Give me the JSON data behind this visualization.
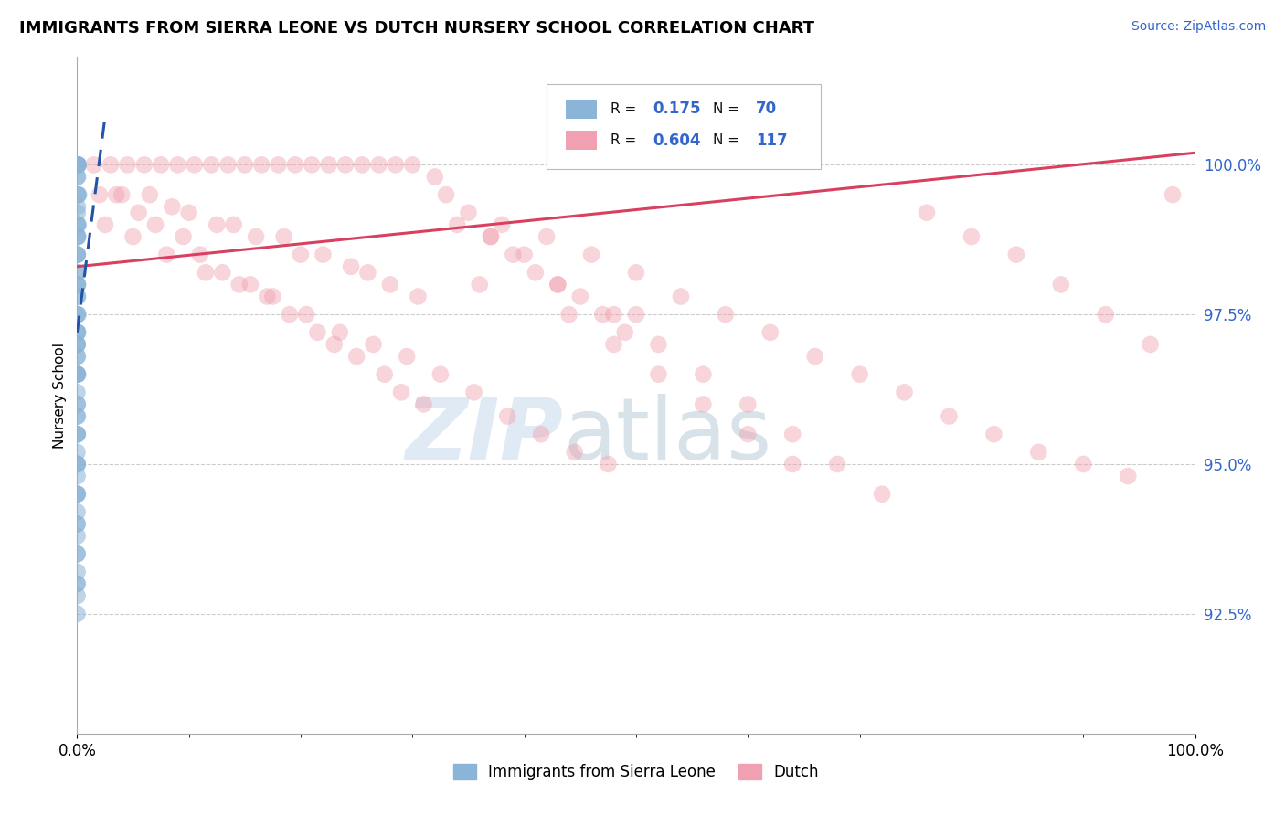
{
  "title": "IMMIGRANTS FROM SIERRA LEONE VS DUTCH NURSERY SCHOOL CORRELATION CHART",
  "source_text": "Source: ZipAtlas.com",
  "ylabel": "Nursery School",
  "x_min": 0.0,
  "x_max": 100.0,
  "y_min": 90.5,
  "y_max": 101.8,
  "y_ticks": [
    92.5,
    95.0,
    97.5,
    100.0
  ],
  "y_tick_labels": [
    "92.5%",
    "95.0%",
    "97.5%",
    "100.0%"
  ],
  "r_blue": 0.175,
  "n_blue": 70,
  "r_pink": 0.604,
  "n_pink": 117,
  "blue_color": "#8ab4d8",
  "pink_color": "#f0a0b0",
  "trend_blue_color": "#2255aa",
  "trend_pink_color": "#d94060",
  "blue_label": "Immigrants from Sierra Leone",
  "pink_label": "Dutch",
  "blue_scatter_x": [
    0.05,
    0.08,
    0.12,
    0.06,
    0.09,
    0.04,
    0.07,
    0.05,
    0.1,
    0.06,
    0.03,
    0.05,
    0.08,
    0.04,
    0.06,
    0.02,
    0.04,
    0.03,
    0.05,
    0.02,
    0.01,
    0.03,
    0.02,
    0.04,
    0.01,
    0.03,
    0.02,
    0.01,
    0.02,
    0.01,
    0.02,
    0.01,
    0.02,
    0.01,
    0.02,
    0.01,
    0.15,
    0.08,
    0.05,
    0.1,
    0.03,
    0.06,
    0.04,
    0.02,
    0.03,
    0.05,
    0.04,
    0.03,
    0.02,
    0.04,
    0.03,
    0.02,
    0.06,
    0.05,
    0.04,
    0.03,
    0.07,
    0.06,
    0.05,
    0.04,
    0.03,
    0.02,
    0.01,
    0.04,
    0.03,
    0.02,
    0.01,
    0.05,
    0.03,
    0.02
  ],
  "blue_scatter_y": [
    100.0,
    100.0,
    100.0,
    100.0,
    100.0,
    99.8,
    99.5,
    99.3,
    99.0,
    99.0,
    98.8,
    98.5,
    98.2,
    98.0,
    97.8,
    97.5,
    97.2,
    97.0,
    96.8,
    96.5,
    96.2,
    96.0,
    95.8,
    95.5,
    95.2,
    95.0,
    94.8,
    94.5,
    94.2,
    94.0,
    93.8,
    93.5,
    93.2,
    93.0,
    92.8,
    92.5,
    99.5,
    98.8,
    98.0,
    97.5,
    97.0,
    96.5,
    96.0,
    95.5,
    95.0,
    94.5,
    94.0,
    93.5,
    93.0,
    99.2,
    98.5,
    97.8,
    97.2,
    96.5,
    95.8,
    95.0,
    99.5,
    98.8,
    98.0,
    97.2,
    96.5,
    95.5,
    94.5,
    99.0,
    98.2,
    97.5,
    96.8,
    99.8,
    98.5,
    97.0
  ],
  "pink_scatter_x": [
    1.5,
    3.0,
    4.5,
    6.0,
    7.5,
    9.0,
    10.5,
    12.0,
    13.5,
    15.0,
    16.5,
    18.0,
    19.5,
    21.0,
    22.5,
    24.0,
    25.5,
    27.0,
    28.5,
    30.0,
    2.0,
    4.0,
    6.5,
    8.5,
    10.0,
    12.5,
    14.0,
    16.0,
    18.5,
    20.0,
    22.0,
    24.5,
    26.0,
    28.0,
    30.5,
    32.0,
    3.5,
    5.5,
    7.0,
    9.5,
    11.0,
    13.0,
    15.5,
    17.0,
    19.0,
    21.5,
    23.0,
    25.0,
    27.5,
    29.0,
    31.0,
    33.0,
    35.0,
    37.0,
    39.0,
    41.0,
    43.0,
    45.0,
    47.0,
    49.0,
    2.5,
    5.0,
    8.0,
    11.5,
    14.5,
    17.5,
    20.5,
    23.5,
    26.5,
    29.5,
    32.5,
    35.5,
    38.5,
    41.5,
    44.5,
    47.5,
    50.0,
    38.0,
    42.0,
    46.0,
    50.0,
    54.0,
    58.0,
    62.0,
    66.0,
    70.0,
    74.0,
    78.0,
    82.0,
    86.0,
    90.0,
    94.0,
    98.0,
    34.0,
    37.0,
    40.0,
    43.0,
    48.0,
    52.0,
    56.0,
    60.0,
    64.0,
    68.0,
    72.0,
    76.0,
    80.0,
    84.0,
    88.0,
    92.0,
    96.0,
    36.0,
    44.0,
    48.0,
    52.0,
    56.0,
    60.0,
    64.0
  ],
  "pink_scatter_y": [
    100.0,
    100.0,
    100.0,
    100.0,
    100.0,
    100.0,
    100.0,
    100.0,
    100.0,
    100.0,
    100.0,
    100.0,
    100.0,
    100.0,
    100.0,
    100.0,
    100.0,
    100.0,
    100.0,
    100.0,
    99.5,
    99.5,
    99.5,
    99.3,
    99.2,
    99.0,
    99.0,
    98.8,
    98.8,
    98.5,
    98.5,
    98.3,
    98.2,
    98.0,
    97.8,
    99.8,
    99.5,
    99.2,
    99.0,
    98.8,
    98.5,
    98.2,
    98.0,
    97.8,
    97.5,
    97.2,
    97.0,
    96.8,
    96.5,
    96.2,
    96.0,
    99.5,
    99.2,
    98.8,
    98.5,
    98.2,
    98.0,
    97.8,
    97.5,
    97.2,
    99.0,
    98.8,
    98.5,
    98.2,
    98.0,
    97.8,
    97.5,
    97.2,
    97.0,
    96.8,
    96.5,
    96.2,
    95.8,
    95.5,
    95.2,
    95.0,
    97.5,
    99.0,
    98.8,
    98.5,
    98.2,
    97.8,
    97.5,
    97.2,
    96.8,
    96.5,
    96.2,
    95.8,
    95.5,
    95.2,
    95.0,
    94.8,
    99.5,
    99.0,
    98.8,
    98.5,
    98.0,
    97.5,
    97.0,
    96.5,
    96.0,
    95.5,
    95.0,
    94.5,
    99.2,
    98.8,
    98.5,
    98.0,
    97.5,
    97.0,
    98.0,
    97.5,
    97.0,
    96.5,
    96.0,
    95.5,
    95.0
  ]
}
